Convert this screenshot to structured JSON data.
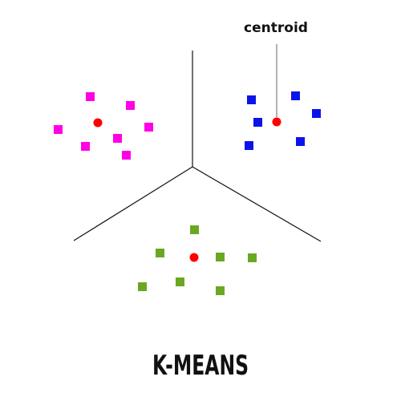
{
  "diagram": {
    "title": "K-MEANS",
    "centroid_label": "centroid",
    "colors": {
      "boundary": "#111111",
      "leader": "#666666",
      "centroid": "#ff0000",
      "cluster_pink": "#ff00e6",
      "cluster_blue": "#0a14e8",
      "cluster_green": "#6aa823"
    }
  }
}
